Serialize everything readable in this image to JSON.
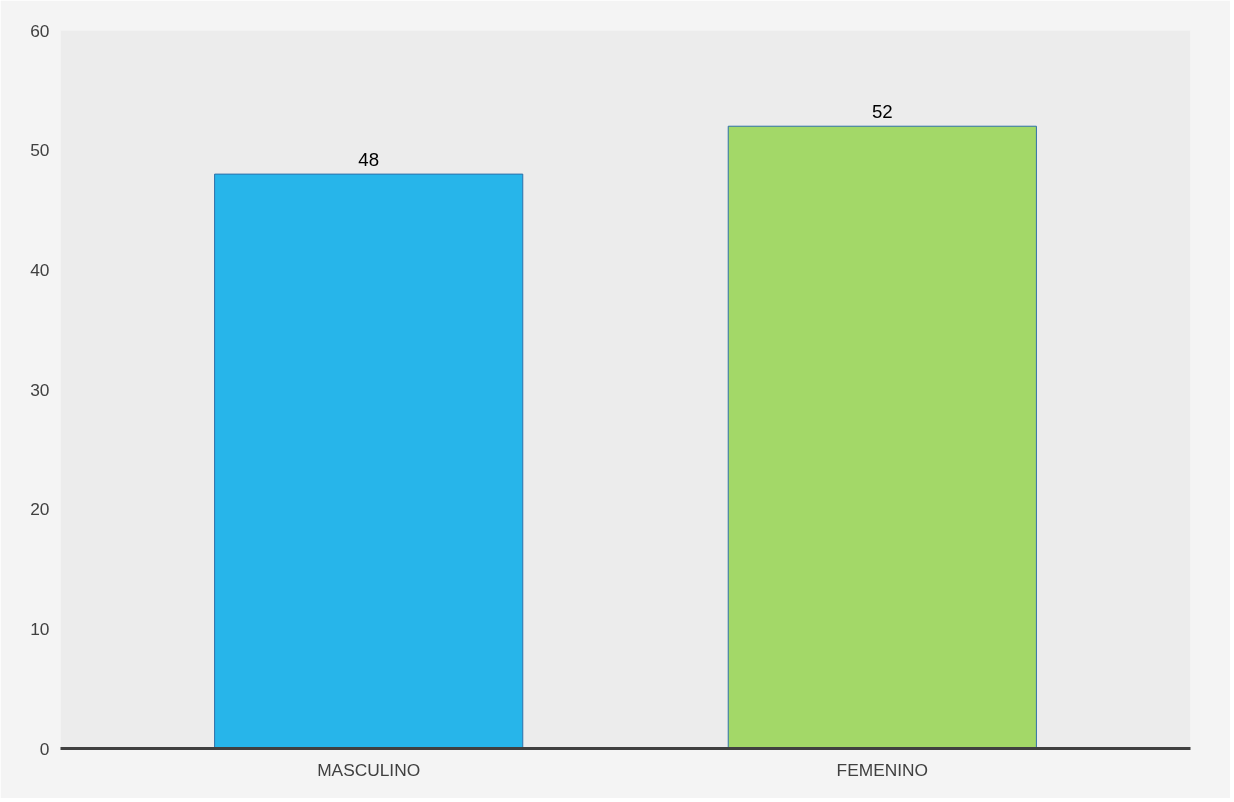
{
  "chart_data": {
    "type": "bar",
    "categories": [
      "MASCULINO",
      "FEMENINO"
    ],
    "values": [
      48,
      52
    ],
    "colors": [
      "#27b5ea",
      "#a3d868"
    ],
    "ylim": [
      0,
      60
    ],
    "yticks": [
      0,
      10,
      20,
      30,
      40,
      50,
      60
    ],
    "grid": false,
    "data_labels": true
  }
}
